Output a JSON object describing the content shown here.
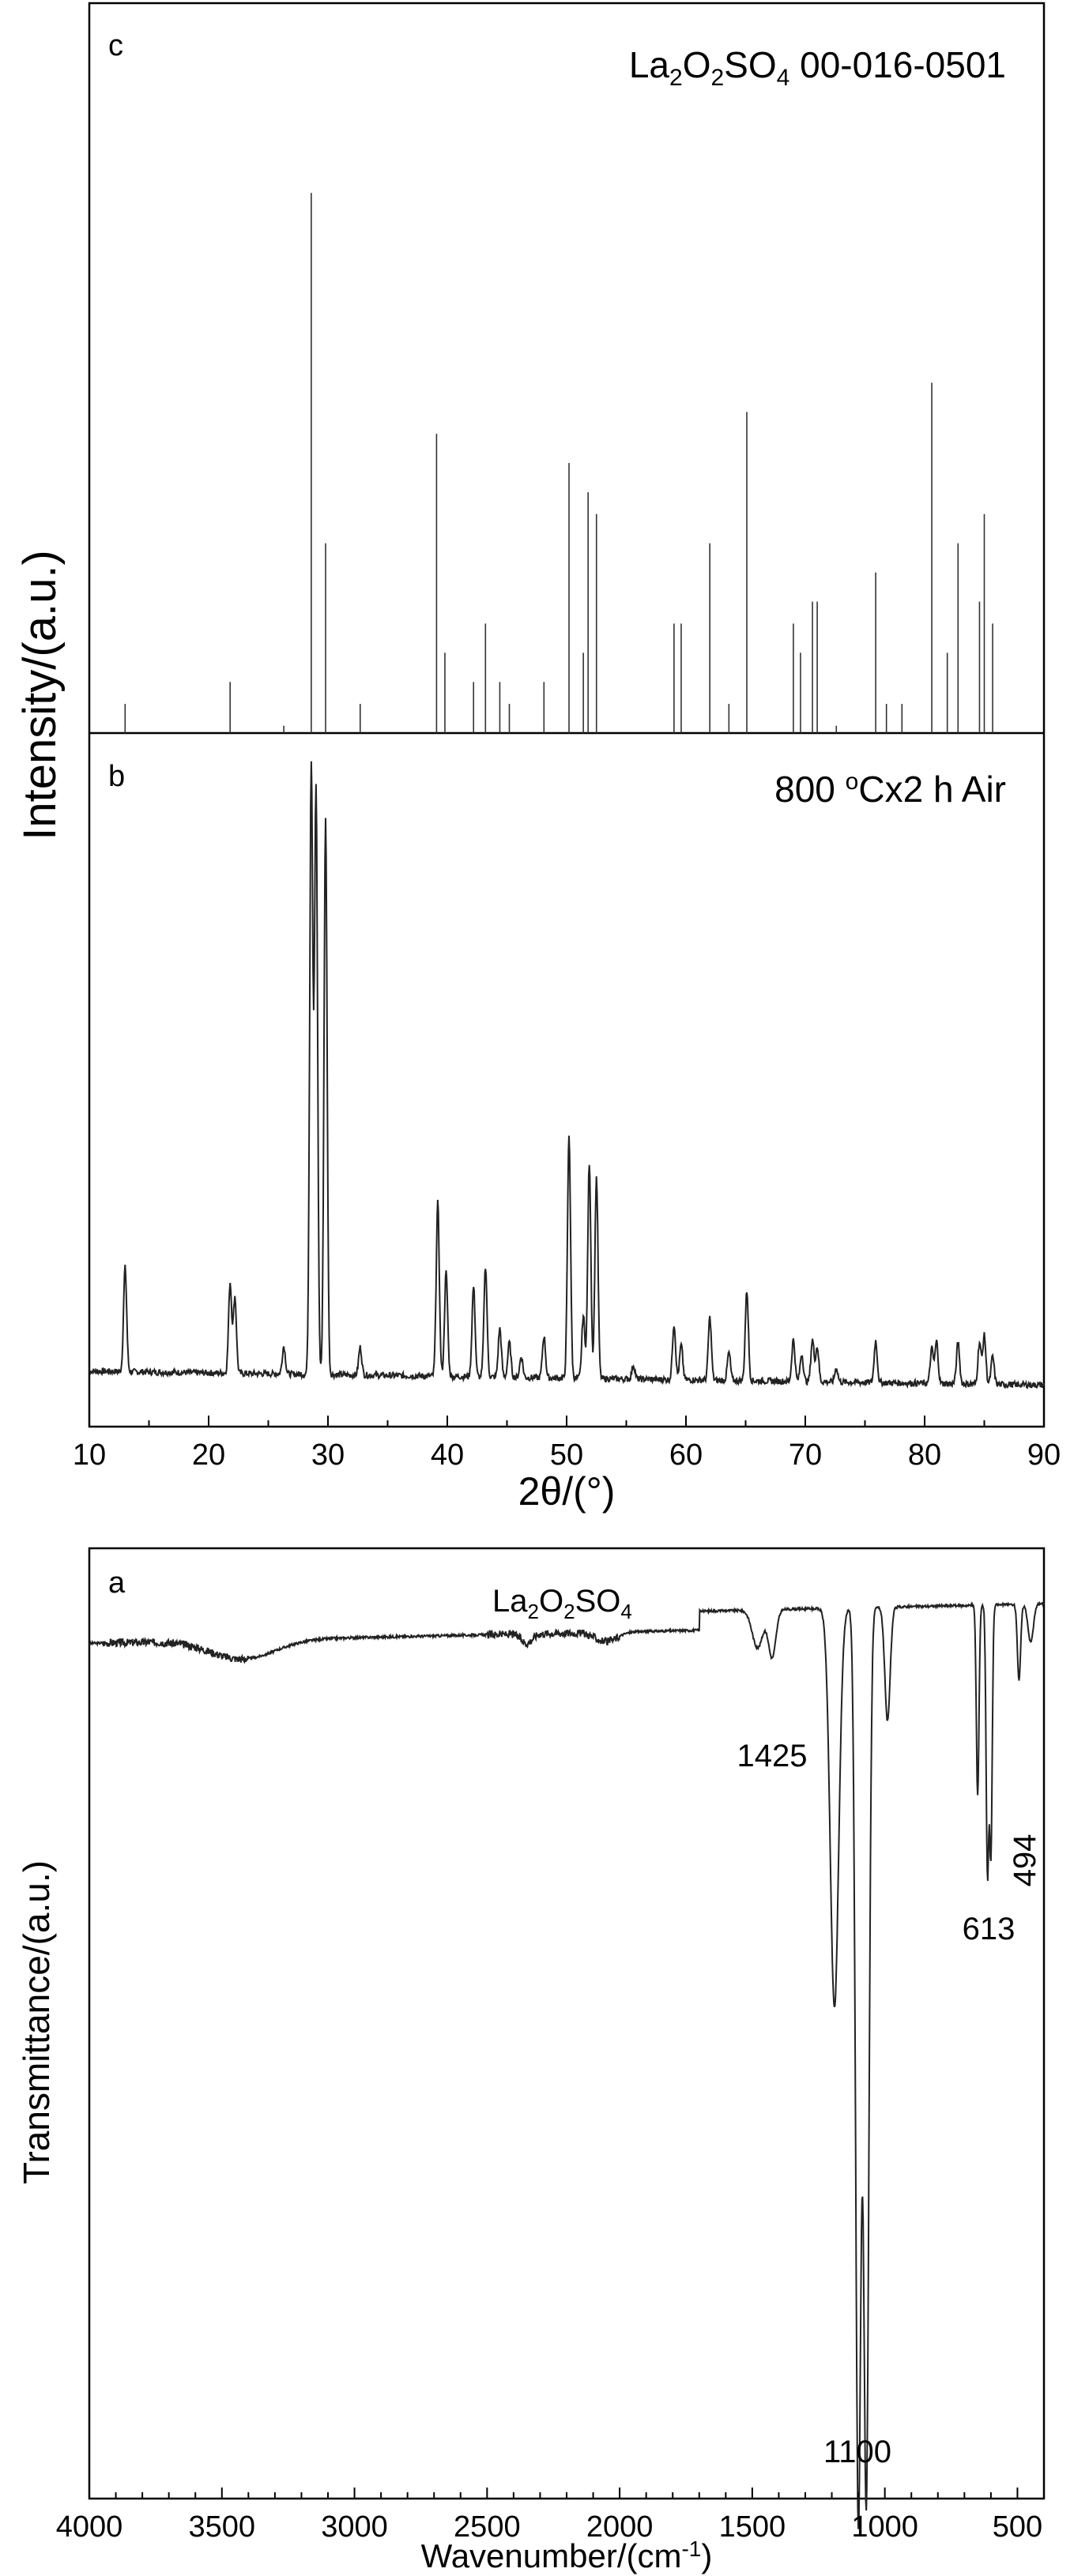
{
  "chart_data": [
    {
      "panel": "c",
      "type": "bar",
      "title": "La2O2SO4 00-016-0501",
      "title_parts": {
        "el1": "La",
        "sub1": "2",
        "el2": "O",
        "sub2": "2",
        "el3": "SO",
        "sub3": "4",
        "rest": " 00-016-0501"
      },
      "xlim": [
        10,
        90
      ],
      "ylim": [
        0,
        100
      ],
      "ylabel": "Intensity/(a.u.)",
      "grid": false,
      "x": [
        13.0,
        21.8,
        26.3,
        28.6,
        29.8,
        32.7,
        39.1,
        39.8,
        42.2,
        43.2,
        44.4,
        45.2,
        48.1,
        50.2,
        51.4,
        51.8,
        52.5,
        59.0,
        59.6,
        62.0,
        63.6,
        65.1,
        69.0,
        69.6,
        70.6,
        71.0,
        72.6,
        75.9,
        76.8,
        78.1,
        80.6,
        81.9,
        82.8,
        84.6,
        85.0,
        85.7
      ],
      "values": [
        4,
        7,
        1,
        74,
        26,
        4,
        41,
        11,
        7,
        15,
        7,
        4,
        7,
        37,
        11,
        33,
        30,
        15,
        15,
        26,
        4,
        44,
        15,
        11,
        18,
        18,
        1,
        22,
        4,
        4,
        48,
        11,
        26,
        18,
        30,
        15
      ]
    },
    {
      "panel": "b",
      "type": "line",
      "title": "800 °Cx2 h Air",
      "title_parts": {
        "pre": "800 ",
        "sup": "o",
        "post": "Cx2 h Air"
      },
      "xlim": [
        10,
        90
      ],
      "ylim": [
        0,
        100
      ],
      "xlabel": "2θ/(°)",
      "xticks": [
        10,
        20,
        30,
        40,
        50,
        60,
        70,
        80,
        90
      ],
      "grid": false,
      "peaks_x": [
        13.0,
        21.8,
        22.2,
        26.3,
        28.6,
        29.0,
        29.8,
        32.7,
        39.2,
        39.9,
        42.2,
        43.2,
        44.4,
        45.2,
        46.2,
        48.1,
        50.2,
        51.4,
        51.9,
        52.5,
        55.6,
        59.0,
        59.6,
        62.0,
        63.6,
        65.1,
        69.0,
        69.7,
        70.6,
        71.0,
        72.6,
        75.9,
        80.6,
        81.0,
        82.8,
        84.6,
        85.0,
        85.7
      ],
      "peaks_height": [
        15,
        13,
        11,
        4,
        88,
        84,
        80,
        4,
        25,
        15,
        13,
        16,
        7,
        5,
        3,
        6,
        35,
        9,
        31,
        29,
        2,
        8,
        5,
        9,
        4,
        13,
        6,
        4,
        6,
        5,
        2,
        6,
        5,
        6,
        6,
        6,
        7,
        4
      ]
    },
    {
      "panel": "a",
      "type": "line",
      "title": "La2O2SO4",
      "title_parts": {
        "el1": "La",
        "sub1": "2",
        "el2": "O",
        "sub2": "2",
        "el3": "SO",
        "sub3": "4"
      },
      "xlim": [
        4000,
        400
      ],
      "ylim": [
        0,
        100
      ],
      "xlabel": "Wavenumber/(cm-1)",
      "xlabel_parts": {
        "pre": "Wavenumber/(cm",
        "sup": "-1",
        "post": ")"
      },
      "ylabel": "Transmittance/(a.u.)",
      "xticks": [
        4000,
        3500,
        3000,
        2500,
        2000,
        1500,
        1000,
        500
      ],
      "grid": false,
      "annotations": [
        "1425",
        "1100",
        "613",
        "494"
      ],
      "bands_x": [
        3420,
        2350,
        2050,
        1480,
        1425,
        1190,
        1100,
        1070,
        990,
        650,
        613,
        600,
        494,
        450
      ],
      "bands_depth": [
        2,
        1,
        1,
        4,
        5,
        42,
        96,
        94,
        12,
        20,
        28,
        26,
        8,
        4
      ]
    }
  ]
}
